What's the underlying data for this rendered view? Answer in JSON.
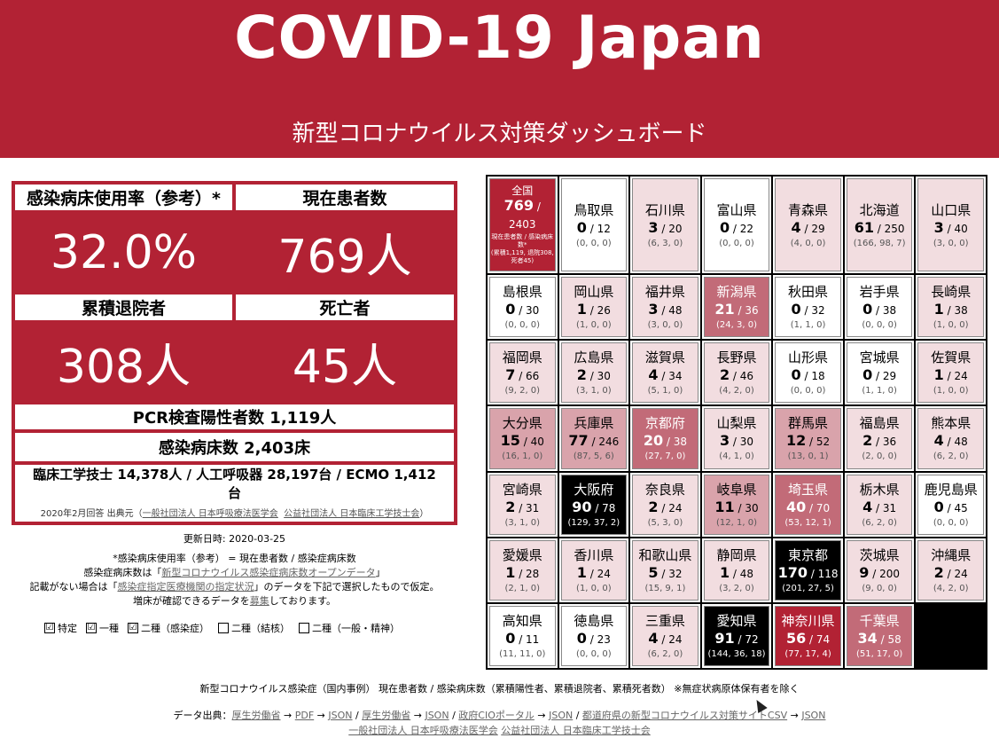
{
  "header": {
    "title": "COVID-19 Japan",
    "subtitle": "新型コロナウイルス対策ダッシュボード"
  },
  "stats": {
    "bed_rate_label": "感染病床使用率（参考）*",
    "bed_rate_value": "32.0%",
    "current_label": "現在患者数",
    "current_value": "769人",
    "discharged_label": "累積退院者",
    "discharged_value": "308人",
    "deaths_label": "死亡者",
    "deaths_value": "45人",
    "pcr": "PCR検査陽性者数 1,119人",
    "beds": "感染病床数 2,403床",
    "staff_line1": "臨床工学技士 14,378人 / 人工呼吸器 28,197台 / ECMO 1,412",
    "staff_line2": "台",
    "staff_src_prefix": "2020年2月回答 出典元（",
    "staff_src_link1": "一般社団法人 日本呼吸療法医学会",
    "staff_src_link2": "公益社団法人 日本臨床工学技士会",
    "staff_src_suffix": "）"
  },
  "notes": {
    "updated": "更新日時: 2020-03-25",
    "line1": "*感染病床使用率（参考） = 現在患者数 / 感染症病床数",
    "line2_prefix": "感染症病床数は「",
    "line2_link": "新型コロナウイルス感染症病床数オープンデータ",
    "line2_suffix": "」",
    "line3_prefix": "記載がない場合は「",
    "line3_link": "感染症指定医療機関の指定状況",
    "line3_suffix": "」のデータを下記で選択したもので仮定。",
    "line4_prefix": "増床が確認できるデータを",
    "line4_link": "募集",
    "line4_suffix": "しております。"
  },
  "checks": [
    {
      "label": "特定",
      "checked": true,
      "mark": "☑"
    },
    {
      "label": "一種",
      "checked": true,
      "mark": "☑"
    },
    {
      "label": "二種（感染症）",
      "checked": true,
      "mark": "☑"
    },
    {
      "label": "二種（結核）",
      "checked": false,
      "mark": ""
    },
    {
      "label": "二種（一般・精神）",
      "checked": false,
      "mark": ""
    }
  ],
  "prefectures": [
    {
      "name": "全国",
      "main": "769",
      "beds": "2403",
      "hist": "現在患者数 / 感染病床数*",
      "hist2": "(累積1,119, 退院308, 死者45)",
      "level": "total"
    },
    {
      "name": "鳥取県",
      "main": "0",
      "beds": "12",
      "hist": "(0, 0, 0)",
      "level": "l0"
    },
    {
      "name": "石川県",
      "main": "3",
      "beds": "20",
      "hist": "(6, 3, 0)",
      "level": "l1"
    },
    {
      "name": "富山県",
      "main": "0",
      "beds": "22",
      "hist": "(0, 0, 0)",
      "level": "l0"
    },
    {
      "name": "青森県",
      "main": "4",
      "beds": "29",
      "hist": "(4, 0, 0)",
      "level": "l1"
    },
    {
      "name": "北海道",
      "main": "61",
      "beds": "250",
      "hist": "(166, 98, 7)",
      "level": "l1"
    },
    {
      "name": "山口県",
      "main": "3",
      "beds": "40",
      "hist": "(3, 0, 0)",
      "level": "l1"
    },
    {
      "name": "島根県",
      "main": "0",
      "beds": "30",
      "hist": "(0, 0, 0)",
      "level": "l0"
    },
    {
      "name": "岡山県",
      "main": "1",
      "beds": "26",
      "hist": "(1, 0, 0)",
      "level": "l1"
    },
    {
      "name": "福井県",
      "main": "3",
      "beds": "48",
      "hist": "(3, 0, 0)",
      "level": "l1"
    },
    {
      "name": "新潟県",
      "main": "21",
      "beds": "36",
      "hist": "(24, 3, 0)",
      "level": "l3"
    },
    {
      "name": "秋田県",
      "main": "0",
      "beds": "32",
      "hist": "(1, 1, 0)",
      "level": "l0"
    },
    {
      "name": "岩手県",
      "main": "0",
      "beds": "38",
      "hist": "(0, 0, 0)",
      "level": "l0"
    },
    {
      "name": "長崎県",
      "main": "1",
      "beds": "38",
      "hist": "(1, 0, 0)",
      "level": "l1"
    },
    {
      "name": "福岡県",
      "main": "7",
      "beds": "66",
      "hist": "(9, 2, 0)",
      "level": "l1"
    },
    {
      "name": "広島県",
      "main": "2",
      "beds": "30",
      "hist": "(3, 1, 0)",
      "level": "l1"
    },
    {
      "name": "滋賀県",
      "main": "4",
      "beds": "34",
      "hist": "(5, 1, 0)",
      "level": "l1"
    },
    {
      "name": "長野県",
      "main": "2",
      "beds": "46",
      "hist": "(4, 2, 0)",
      "level": "l1"
    },
    {
      "name": "山形県",
      "main": "0",
      "beds": "18",
      "hist": "(0, 0, 0)",
      "level": "l0"
    },
    {
      "name": "宮城県",
      "main": "0",
      "beds": "29",
      "hist": "(1, 1, 0)",
      "level": "l0"
    },
    {
      "name": "佐賀県",
      "main": "1",
      "beds": "24",
      "hist": "(1, 0, 0)",
      "level": "l1"
    },
    {
      "name": "大分県",
      "main": "15",
      "beds": "40",
      "hist": "(16, 1, 0)",
      "level": "l2"
    },
    {
      "name": "兵庫県",
      "main": "77",
      "beds": "246",
      "hist": "(87, 5, 6)",
      "level": "l2"
    },
    {
      "name": "京都府",
      "main": "20",
      "beds": "38",
      "hist": "(27, 7, 0)",
      "level": "l3"
    },
    {
      "name": "山梨県",
      "main": "3",
      "beds": "30",
      "hist": "(4, 1, 0)",
      "level": "l1"
    },
    {
      "name": "群馬県",
      "main": "12",
      "beds": "52",
      "hist": "(13, 0, 1)",
      "level": "l2"
    },
    {
      "name": "福島県",
      "main": "2",
      "beds": "36",
      "hist": "(2, 0, 0)",
      "level": "l1"
    },
    {
      "name": "熊本県",
      "main": "4",
      "beds": "48",
      "hist": "(6, 2, 0)",
      "level": "l1"
    },
    {
      "name": "宮崎県",
      "main": "2",
      "beds": "31",
      "hist": "(3, 1, 0)",
      "level": "l1"
    },
    {
      "name": "大阪府",
      "main": "90",
      "beds": "78",
      "hist": "(129, 37, 2)",
      "level": "blk"
    },
    {
      "name": "奈良県",
      "main": "2",
      "beds": "24",
      "hist": "(5, 3, 0)",
      "level": "l1"
    },
    {
      "name": "岐阜県",
      "main": "11",
      "beds": "30",
      "hist": "(12, 1, 0)",
      "level": "l2"
    },
    {
      "name": "埼玉県",
      "main": "40",
      "beds": "70",
      "hist": "(53, 12, 1)",
      "level": "l3"
    },
    {
      "name": "栃木県",
      "main": "4",
      "beds": "31",
      "hist": "(6, 2, 0)",
      "level": "l1"
    },
    {
      "name": "鹿児島県",
      "main": "0",
      "beds": "45",
      "hist": "(0, 0, 0)",
      "level": "l0"
    },
    {
      "name": "愛媛県",
      "main": "1",
      "beds": "28",
      "hist": "(2, 1, 0)",
      "level": "l1"
    },
    {
      "name": "香川県",
      "main": "1",
      "beds": "24",
      "hist": "(1, 0, 0)",
      "level": "l1"
    },
    {
      "name": "和歌山県",
      "main": "5",
      "beds": "32",
      "hist": "(15, 9, 1)",
      "level": "l1"
    },
    {
      "name": "静岡県",
      "main": "1",
      "beds": "48",
      "hist": "(3, 2, 0)",
      "level": "l1"
    },
    {
      "name": "東京都",
      "main": "170",
      "beds": "118",
      "hist": "(201, 27, 5)",
      "level": "blk"
    },
    {
      "name": "茨城県",
      "main": "9",
      "beds": "200",
      "hist": "(9, 0, 0)",
      "level": "l1"
    },
    {
      "name": "沖縄県",
      "main": "2",
      "beds": "24",
      "hist": "(4, 2, 0)",
      "level": "l1"
    },
    {
      "name": "高知県",
      "main": "0",
      "beds": "11",
      "hist": "(11, 11, 0)",
      "level": "l0"
    },
    {
      "name": "徳島県",
      "main": "0",
      "beds": "23",
      "hist": "(0, 0, 0)",
      "level": "l0"
    },
    {
      "name": "三重県",
      "main": "4",
      "beds": "24",
      "hist": "(6, 2, 0)",
      "level": "l1"
    },
    {
      "name": "愛知県",
      "main": "91",
      "beds": "72",
      "hist": "(144, 36, 18)",
      "level": "blk"
    },
    {
      "name": "神奈川県",
      "main": "56",
      "beds": "74",
      "hist": "(77, 17, 4)",
      "level": "l4"
    },
    {
      "name": "千葉県",
      "main": "34",
      "beds": "58",
      "hist": "(51, 17, 0)",
      "level": "l3"
    }
  ],
  "footer": {
    "legend": "新型コロナウイルス感染症（国内事例） 現在患者数 / 感染病床数（累積陽性者、累積退院者、累積死者数） ※無症状病原体保有者を除く",
    "src_prefix": "データ出典：",
    "src_links": [
      "厚生労働省",
      "PDF",
      "JSON",
      "厚生労働省",
      "JSON",
      "政府CIOポータル",
      "JSON",
      "都道府県の新型コロナウイルス対策サイトCSV",
      "JSON"
    ],
    "src_line2_links": [
      "一般社団法人 日本呼吸療法医学会",
      "公益社団法人 日本臨床工学技士会"
    ]
  }
}
